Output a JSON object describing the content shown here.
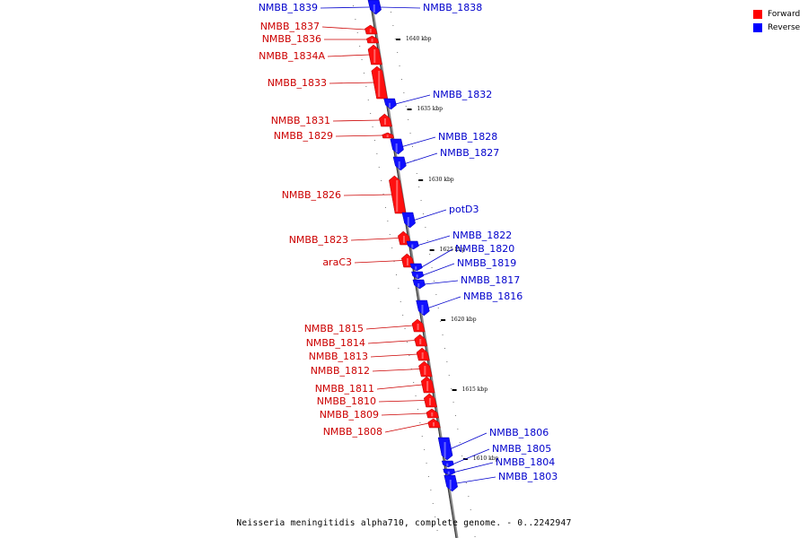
{
  "legend": {
    "items": [
      {
        "label": "Forward",
        "color": "#ff0000"
      },
      {
        "label": "Reverse",
        "color": "#0000ff"
      }
    ]
  },
  "footer": {
    "caption": "Neisseria meningitidis alpha710, complete genome. - 0..2242947"
  },
  "colors": {
    "forward": "#ff1010",
    "reverse": "#1010ff",
    "forward_label": "#cc0000",
    "reverse_label": "#0000cc",
    "backbone": "#888888"
  },
  "ticks": [
    {
      "label": "1640 kbp"
    },
    {
      "label": "1635 kbp"
    },
    {
      "label": "1630 kbp"
    },
    {
      "label": "1625 kbp"
    },
    {
      "label": "1620 kbp"
    },
    {
      "label": "1615 kbp"
    },
    {
      "label": "1610 kbp"
    }
  ],
  "genes": [
    {
      "name": "NMBB_1839",
      "strand": "reverse"
    },
    {
      "name": "NMBB_1838",
      "strand": "reverse"
    },
    {
      "name": "NMBB_1837",
      "strand": "forward"
    },
    {
      "name": "NMBB_1836",
      "strand": "forward"
    },
    {
      "name": "NMBB_1834A",
      "strand": "forward"
    },
    {
      "name": "NMBB_1833",
      "strand": "forward"
    },
    {
      "name": "NMBB_1832",
      "strand": "reverse"
    },
    {
      "name": "NMBB_1831",
      "strand": "forward"
    },
    {
      "name": "NMBB_1829",
      "strand": "forward"
    },
    {
      "name": "NMBB_1828",
      "strand": "reverse"
    },
    {
      "name": "NMBB_1827",
      "strand": "reverse"
    },
    {
      "name": "NMBB_1826",
      "strand": "forward"
    },
    {
      "name": "potD3",
      "strand": "reverse"
    },
    {
      "name": "NMBB_1823",
      "strand": "forward"
    },
    {
      "name": "NMBB_1822",
      "strand": "reverse"
    },
    {
      "name": "araC3",
      "strand": "forward"
    },
    {
      "name": "NMBB_1820",
      "strand": "reverse"
    },
    {
      "name": "NMBB_1819",
      "strand": "reverse"
    },
    {
      "name": "NMBB_1817",
      "strand": "reverse"
    },
    {
      "name": "NMBB_1816",
      "strand": "reverse"
    },
    {
      "name": "NMBB_1815",
      "strand": "forward"
    },
    {
      "name": "NMBB_1814",
      "strand": "forward"
    },
    {
      "name": "NMBB_1813",
      "strand": "forward"
    },
    {
      "name": "NMBB_1812",
      "strand": "forward"
    },
    {
      "name": "NMBB_1811",
      "strand": "forward"
    },
    {
      "name": "NMBB_1810",
      "strand": "forward"
    },
    {
      "name": "NMBB_1809",
      "strand": "forward"
    },
    {
      "name": "NMBB_1808",
      "strand": "forward"
    },
    {
      "name": "NMBB_1806",
      "strand": "reverse"
    },
    {
      "name": "NMBB_1805",
      "strand": "reverse"
    },
    {
      "name": "NMBB_1804",
      "strand": "reverse"
    },
    {
      "name": "NMBB_1803",
      "strand": "reverse"
    }
  ]
}
